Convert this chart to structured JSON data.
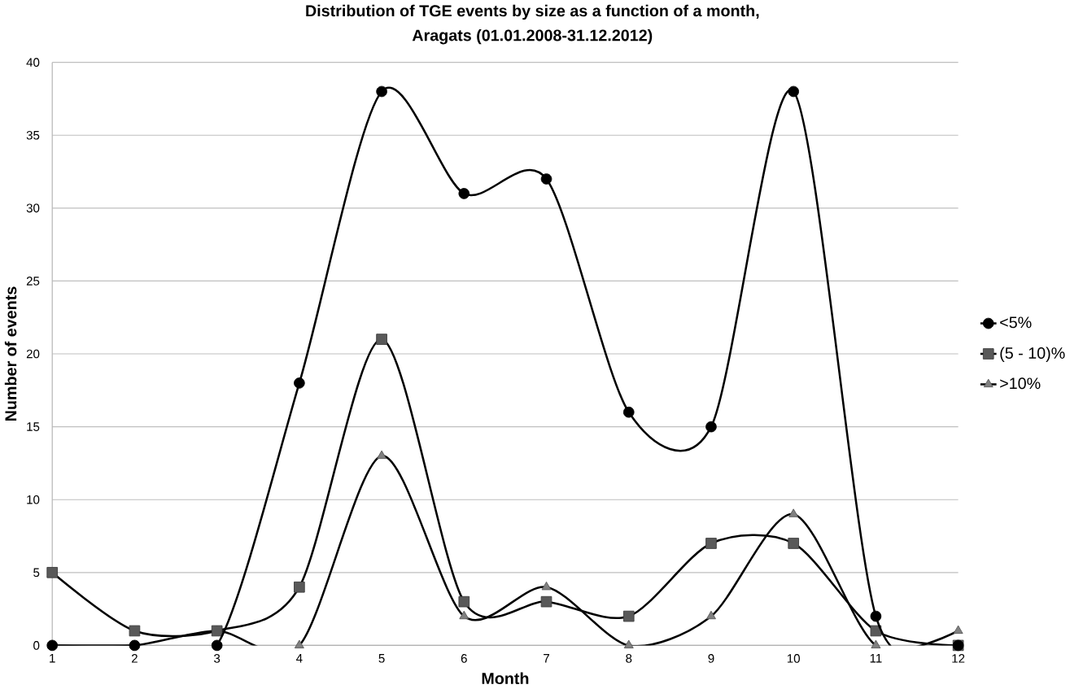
{
  "chart_data": {
    "type": "line",
    "title": "Distribution of TGE events by size as a function of a month,\nAragats (01.01.2008-31.12.2012)",
    "xlabel": "Month",
    "ylabel": "Number of events",
    "categories": [
      "1",
      "2",
      "3",
      "4",
      "5",
      "6",
      "7",
      "8",
      "9",
      "10",
      "11",
      "12"
    ],
    "series": [
      {
        "name": "<5%",
        "color": "#000000",
        "marker": "circle",
        "values": [
          0,
          0,
          0,
          18,
          38,
          31,
          32,
          16,
          15,
          38,
          2,
          0
        ]
      },
      {
        "name": "(5 - 10)%",
        "color": "#595959",
        "marker": "square",
        "values": [
          5,
          1,
          1,
          4,
          21,
          3,
          3,
          2,
          7,
          7,
          1,
          0
        ]
      },
      {
        "name": ">10%",
        "color": "#808080",
        "marker": "triangle",
        "values": [
          0,
          0,
          1,
          0,
          13,
          2,
          4,
          0,
          2,
          9,
          0,
          1
        ]
      }
    ],
    "ylim": [
      0,
      40
    ],
    "yticks": [
      0,
      5,
      10,
      15,
      20,
      25,
      30,
      35,
      40
    ],
    "grid": "y",
    "legend": "right",
    "line_style": "solid"
  }
}
